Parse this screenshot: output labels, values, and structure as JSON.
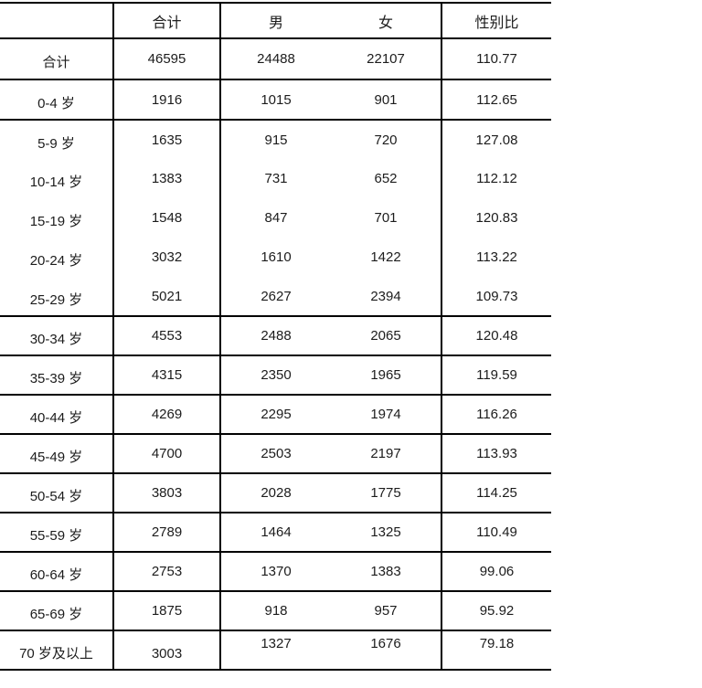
{
  "table": {
    "columns": [
      "",
      "合计",
      "男",
      "女",
      "性别比"
    ],
    "column_keys": [
      "label",
      "total",
      "male",
      "female",
      "ratio"
    ],
    "border_color": "#000000",
    "text_color": "#1c1c1c",
    "background_color": "#ffffff",
    "rows": [
      {
        "label": "合计",
        "total": "46595",
        "male": "24488",
        "female": "22107",
        "ratio": "110.77"
      },
      {
        "label": "0-4 岁",
        "total": "1916",
        "male": "1015",
        "female": "901",
        "ratio": "112.65"
      },
      {
        "label": "5-9 岁",
        "total": "1635",
        "male": "915",
        "female": "720",
        "ratio": "127.08"
      },
      {
        "label": "10-14 岁",
        "total": "1383",
        "male": "731",
        "female": "652",
        "ratio": "112.12"
      },
      {
        "label": "15-19 岁",
        "total": "1548",
        "male": "847",
        "female": "701",
        "ratio": "120.83"
      },
      {
        "label": "20-24 岁",
        "total": "3032",
        "male": "1610",
        "female": "1422",
        "ratio": "113.22"
      },
      {
        "label": "25-29 岁",
        "total": "5021",
        "male": "2627",
        "female": "2394",
        "ratio": "109.73"
      },
      {
        "label": "30-34 岁",
        "total": "4553",
        "male": "2488",
        "female": "2065",
        "ratio": "120.48"
      },
      {
        "label": "35-39 岁",
        "total": "4315",
        "male": "2350",
        "female": "1965",
        "ratio": "119.59"
      },
      {
        "label": "40-44 岁",
        "total": "4269",
        "male": "2295",
        "female": "1974",
        "ratio": "116.26"
      },
      {
        "label": "45-49 岁",
        "total": "4700",
        "male": "2503",
        "female": "2197",
        "ratio": "113.93"
      },
      {
        "label": "50-54 岁",
        "total": "3803",
        "male": "2028",
        "female": "1775",
        "ratio": "114.25"
      },
      {
        "label": "55-59 岁",
        "total": "2789",
        "male": "1464",
        "female": "1325",
        "ratio": "110.49"
      },
      {
        "label": "60-64 岁",
        "total": "2753",
        "male": "1370",
        "female": "1383",
        "ratio": "99.06"
      },
      {
        "label": "65-69 岁",
        "total": "1875",
        "male": "918",
        "female": "957",
        "ratio": "95.92"
      },
      {
        "label": "70 岁及以上",
        "total": "3003",
        "male": "1327",
        "female": "1676",
        "ratio": "79.18"
      }
    ]
  }
}
